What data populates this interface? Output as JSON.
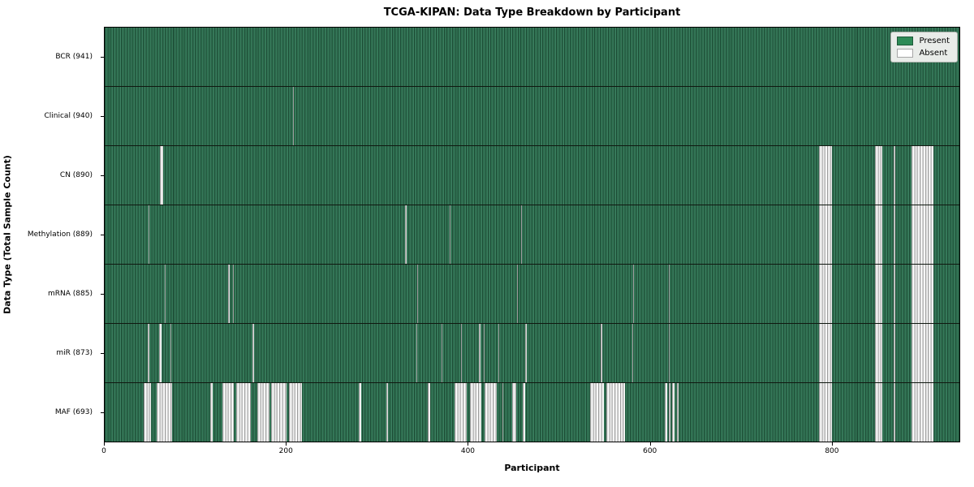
{
  "chart_data": {
    "type": "heatmap",
    "title": "TCGA-KIPAN: Data Type Breakdown by Participant",
    "xlabel": "Participant",
    "ylabel": "Data Type (Total Sample Count)",
    "x_ticks": [
      0,
      200,
      400,
      600,
      800
    ],
    "x_range": [
      0,
      941
    ],
    "n_participants": 941,
    "grid": false,
    "legend": {
      "position": "upper right",
      "entries": [
        {
          "label": "Present",
          "color": "#2e8b57"
        },
        {
          "label": "Absent",
          "color": "#ffffff"
        }
      ]
    },
    "cell_states": {
      "present": 1,
      "absent": 0
    },
    "rows": [
      {
        "data_type": "BCR",
        "label": "BCR (941)",
        "sample_count": 941,
        "absent_ranges": []
      },
      {
        "data_type": "Clinical",
        "label": "Clinical (940)",
        "sample_count": 940,
        "absent_ranges": [
          [
            207,
            207
          ]
        ]
      },
      {
        "data_type": "CN",
        "label": "CN (890)",
        "sample_count": 890,
        "absent_ranges": [
          [
            61,
            63
          ],
          [
            786,
            800
          ],
          [
            848,
            855
          ],
          [
            869,
            869
          ],
          [
            888,
            911
          ]
        ]
      },
      {
        "data_type": "Methylation",
        "label": "Methylation (889)",
        "sample_count": 889,
        "absent_ranges": [
          [
            48,
            48
          ],
          [
            331,
            331
          ],
          [
            380,
            380
          ],
          [
            458,
            458
          ],
          [
            786,
            800
          ],
          [
            848,
            855
          ],
          [
            869,
            869
          ],
          [
            888,
            911
          ]
        ]
      },
      {
        "data_type": "mRNA",
        "label": "mRNA (885)",
        "sample_count": 885,
        "absent_ranges": [
          [
            66,
            66
          ],
          [
            136,
            137
          ],
          [
            141,
            141
          ],
          [
            344,
            344
          ],
          [
            454,
            454
          ],
          [
            582,
            582
          ],
          [
            621,
            621
          ],
          [
            786,
            800
          ],
          [
            848,
            855
          ],
          [
            869,
            869
          ],
          [
            888,
            911
          ]
        ]
      },
      {
        "data_type": "miR",
        "label": "miR (873)",
        "sample_count": 873,
        "absent_ranges": [
          [
            47,
            48
          ],
          [
            60,
            62
          ],
          [
            72,
            72
          ],
          [
            163,
            163
          ],
          [
            343,
            343
          ],
          [
            371,
            371
          ],
          [
            392,
            392
          ],
          [
            412,
            413
          ],
          [
            417,
            417
          ],
          [
            433,
            433
          ],
          [
            463,
            464
          ],
          [
            546,
            547
          ],
          [
            581,
            581
          ],
          [
            621,
            621
          ],
          [
            786,
            800
          ],
          [
            848,
            855
          ],
          [
            869,
            869
          ],
          [
            888,
            911
          ]
        ]
      },
      {
        "data_type": "MAF",
        "label": "MAF (693)",
        "sample_count": 693,
        "absent_ranges": [
          [
            43,
            50
          ],
          [
            57,
            73
          ],
          [
            116,
            118
          ],
          [
            130,
            141
          ],
          [
            145,
            160
          ],
          [
            168,
            180
          ],
          [
            183,
            199
          ],
          [
            203,
            216
          ],
          [
            280,
            281
          ],
          [
            310,
            311
          ],
          [
            356,
            357
          ],
          [
            385,
            398
          ],
          [
            402,
            414
          ],
          [
            418,
            431
          ],
          [
            438,
            438
          ],
          [
            449,
            452
          ],
          [
            460,
            462
          ],
          [
            534,
            549
          ],
          [
            552,
            572
          ],
          [
            617,
            618
          ],
          [
            621,
            622
          ],
          [
            625,
            626
          ],
          [
            630,
            631
          ],
          [
            786,
            800
          ],
          [
            848,
            855
          ],
          [
            869,
            869
          ],
          [
            888,
            911
          ]
        ]
      }
    ]
  },
  "colors": {
    "present_fill": "#2e8b57",
    "present_edge": "#1d4d36",
    "absent_fill": "#ffffff",
    "absent_edge": "#9e9e9e",
    "axis": "#000000",
    "legend_bg": "#e9ece9"
  }
}
